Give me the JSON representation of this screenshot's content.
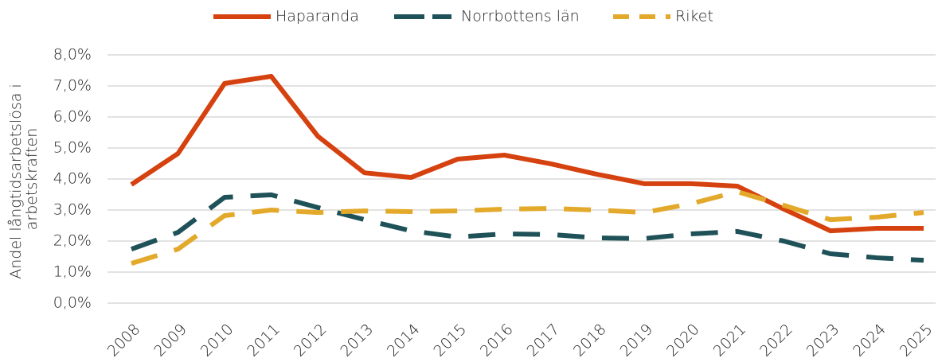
{
  "chart_data": {
    "type": "line",
    "y_label": [
      "Andel långtidsarbetslösa i",
      "arbetskraften"
    ],
    "categories": [
      "2008",
      "2009",
      "2010",
      "2011",
      "2012",
      "2013",
      "2014",
      "2015",
      "2016",
      "2017",
      "2018",
      "2019",
      "2020",
      "2021",
      "2022",
      "2023",
      "2024",
      "2025"
    ],
    "series": [
      {
        "name": "Haparanda",
        "color": "#d5410f",
        "dash": "solid",
        "values": [
          3.82,
          4.82,
          7.08,
          7.31,
          5.38,
          4.2,
          4.05,
          4.64,
          4.77,
          4.49,
          4.15,
          3.85,
          3.85,
          3.77,
          3.03,
          2.33,
          2.41,
          2.41
        ]
      },
      {
        "name": "Norrbottens län",
        "color": "#1f5158",
        "dash": "dashed",
        "values": [
          1.74,
          2.28,
          3.41,
          3.49,
          3.08,
          2.69,
          2.33,
          2.13,
          2.23,
          2.21,
          2.1,
          2.08,
          2.23,
          2.31,
          2.0,
          1.59,
          1.46,
          1.38
        ]
      },
      {
        "name": "Riket",
        "color": "#e3a92b",
        "dash": "dashed",
        "values": [
          1.28,
          1.74,
          2.82,
          3.0,
          2.92,
          2.97,
          2.95,
          2.97,
          3.03,
          3.05,
          3.0,
          2.92,
          3.2,
          3.59,
          3.15,
          2.69,
          2.77,
          2.92
        ]
      }
    ],
    "ylim": [
      0,
      8
    ],
    "yticks": [
      {
        "value": 0,
        "label": "0,0%"
      },
      {
        "value": 1,
        "label": "1,0%"
      },
      {
        "value": 2,
        "label": "2,0%"
      },
      {
        "value": 3,
        "label": "3,0%"
      },
      {
        "value": 4,
        "label": "4,0%"
      },
      {
        "value": 5,
        "label": "5,0%"
      },
      {
        "value": 6,
        "label": "6,0%"
      },
      {
        "value": 7,
        "label": "7,0%"
      },
      {
        "value": 8,
        "label": "8,0%"
      }
    ],
    "grid": true,
    "legend": "top"
  }
}
